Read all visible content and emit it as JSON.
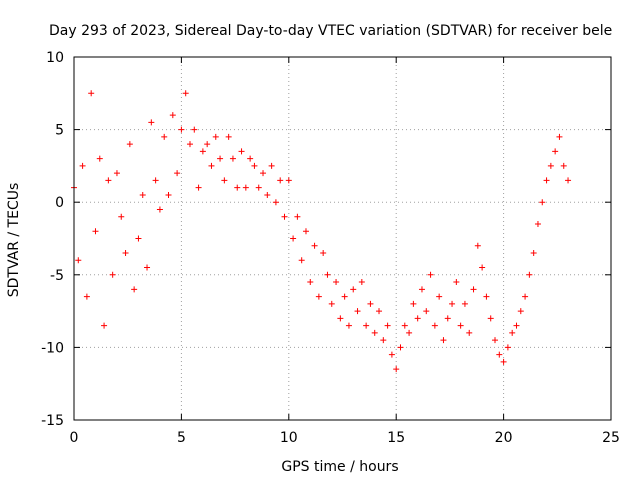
{
  "chart_data": {
    "type": "scatter",
    "title": "Day 293 of 2023, Sidereal Day-to-day VTEC variation (SDTVAR) for receiver bele",
    "xlabel": "GPS time / hours",
    "ylabel": "SDTVAR / TECUs",
    "xlim": [
      0,
      25
    ],
    "ylim": [
      -15,
      10
    ],
    "xticks": [
      0,
      5,
      10,
      15,
      20,
      25
    ],
    "yticks": [
      -15,
      -10,
      -5,
      0,
      5,
      10
    ],
    "xtick_labels": [
      "0",
      "5",
      "10",
      "15",
      "20",
      "25"
    ],
    "ytick_labels": [
      "-15",
      "-10",
      "-5",
      "0",
      "5",
      "10"
    ],
    "grid": true,
    "marker": "+",
    "series": [
      {
        "name": "SDTVAR",
        "color": "#ff0000",
        "x": [
          0.0,
          0.2,
          0.4,
          0.6,
          0.8,
          1.0,
          1.2,
          1.4,
          1.6,
          1.8,
          2.0,
          2.2,
          2.4,
          2.6,
          2.8,
          3.0,
          3.2,
          3.4,
          3.6,
          3.8,
          4.0,
          4.2,
          4.4,
          4.6,
          4.8,
          5.0,
          5.2,
          5.4,
          5.6,
          5.8,
          6.0,
          6.2,
          6.4,
          6.6,
          6.8,
          7.0,
          7.2,
          7.4,
          7.6,
          7.8,
          8.0,
          8.2,
          8.4,
          8.6,
          8.8,
          9.0,
          9.2,
          9.4,
          9.6,
          9.8,
          10.0,
          10.2,
          10.4,
          10.6,
          10.8,
          11.0,
          11.2,
          11.4,
          11.6,
          11.8,
          12.0,
          12.2,
          12.4,
          12.6,
          12.8,
          13.0,
          13.2,
          13.4,
          13.6,
          13.8,
          14.0,
          14.2,
          14.4,
          14.6,
          14.8,
          15.0,
          15.2,
          15.4,
          15.6,
          15.8,
          16.0,
          16.2,
          16.4,
          16.6,
          16.8,
          17.0,
          17.2,
          17.4,
          17.6,
          17.8,
          18.0,
          18.2,
          18.4,
          18.6,
          18.8,
          19.0,
          19.2,
          19.4,
          19.6,
          19.8,
          20.0,
          20.2,
          20.4,
          20.6,
          20.8,
          21.0,
          21.2,
          21.4,
          21.6,
          21.8,
          22.0,
          22.2,
          22.4,
          22.6,
          22.8,
          23.0
        ],
        "y": [
          1.0,
          -4.0,
          2.5,
          -6.5,
          7.5,
          -2.0,
          3.0,
          -8.5,
          1.5,
          -5.0,
          2.0,
          -1.0,
          -3.5,
          4.0,
          -6.0,
          -2.5,
          0.5,
          -4.5,
          5.5,
          1.5,
          -0.5,
          4.5,
          0.5,
          6.0,
          2.0,
          5.0,
          7.5,
          4.0,
          5.0,
          1.0,
          3.5,
          4.0,
          2.5,
          4.5,
          3.0,
          1.5,
          4.5,
          3.0,
          1.0,
          3.5,
          1.0,
          3.0,
          2.5,
          1.0,
          2.0,
          0.5,
          2.5,
          0.0,
          1.5,
          -1.0,
          1.5,
          -2.5,
          -1.0,
          -4.0,
          -2.0,
          -5.5,
          -3.0,
          -6.5,
          -3.5,
          -5.0,
          -7.0,
          -5.5,
          -8.0,
          -6.5,
          -8.5,
          -6.0,
          -7.5,
          -5.5,
          -8.5,
          -7.0,
          -9.0,
          -7.5,
          -9.5,
          -8.5,
          -10.5,
          -11.5,
          -10.0,
          -8.5,
          -9.0,
          -7.0,
          -8.0,
          -6.0,
          -7.5,
          -5.0,
          -8.5,
          -6.5,
          -9.5,
          -8.0,
          -7.0,
          -5.5,
          -8.5,
          -7.0,
          -9.0,
          -6.0,
          -3.0,
          -4.5,
          -6.5,
          -8.0,
          -9.5,
          -10.5,
          -11.0,
          -10.0,
          -9.0,
          -8.5,
          -7.5,
          -6.5,
          -5.0,
          -3.5,
          -1.5,
          0.0,
          1.5,
          2.5,
          3.5,
          4.5,
          2.5,
          1.5
        ]
      }
    ]
  }
}
